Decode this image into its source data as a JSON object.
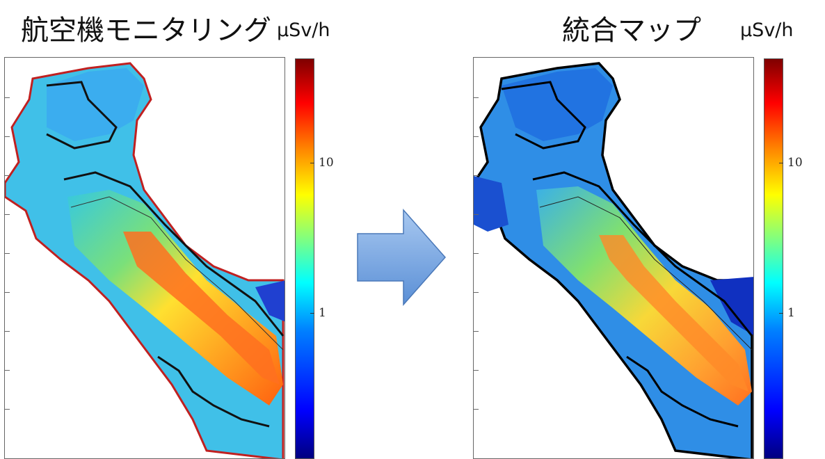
{
  "left_panel": {
    "title": "航空機モニタリング",
    "unit": "μSv/h",
    "colorbar_ticks": [
      "10",
      "1"
    ],
    "boundary_color": "#c02020"
  },
  "right_panel": {
    "title": "統合マップ",
    "unit": "μSv/h",
    "colorbar_ticks": [
      "10",
      "1"
    ],
    "boundary_color": "#000000"
  },
  "arrow": {
    "icon": "right-arrow-icon",
    "fill": "#7aa6e0"
  }
}
